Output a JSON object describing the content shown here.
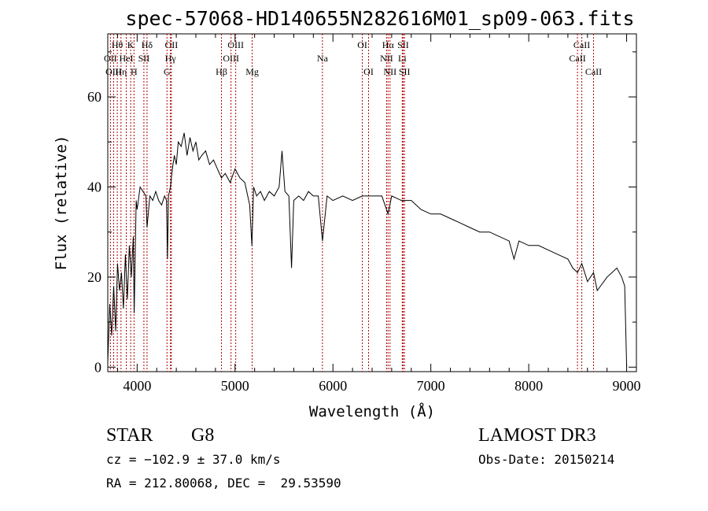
{
  "chart_data": {
    "type": "line",
    "title": "spec-57068-HD140655N282616M01_sp09-063.fits",
    "xlabel": "Wavelength (Å)",
    "ylabel": "Flux (relative)",
    "xlim": [
      3700,
      9100
    ],
    "ylim": [
      -1,
      74
    ],
    "x_ticks": [
      4000,
      5000,
      6000,
      7000,
      8000,
      9000
    ],
    "x_tick_labels": [
      "4000",
      "5000",
      "6000",
      "7000",
      "8000",
      "9000"
    ],
    "y_ticks": [
      0,
      20,
      40,
      60
    ],
    "y_tick_labels": [
      "0",
      "20",
      "40",
      "60"
    ],
    "grid": false,
    "series": [
      {
        "name": "spectrum",
        "x": [
          3700,
          3720,
          3740,
          3760,
          3780,
          3800,
          3820,
          3840,
          3860,
          3880,
          3900,
          3920,
          3940,
          3960,
          3970,
          3990,
          4000,
          4030,
          4060,
          4090,
          4101,
          4130,
          4160,
          4190,
          4220,
          4250,
          4280,
          4300,
          4310,
          4320,
          4340,
          4360,
          4380,
          4400,
          4420,
          4450,
          4480,
          4510,
          4540,
          4570,
          4600,
          4630,
          4660,
          4700,
          4740,
          4780,
          4820,
          4861,
          4900,
          4950,
          5000,
          5050,
          5100,
          5150,
          5172,
          5190,
          5220,
          5260,
          5300,
          5350,
          5400,
          5450,
          5480,
          5510,
          5550,
          5577,
          5600,
          5650,
          5700,
          5750,
          5800,
          5850,
          5893,
          5940,
          6000,
          6100,
          6200,
          6300,
          6400,
          6500,
          6563,
          6600,
          6700,
          6800,
          6900,
          7000,
          7100,
          7200,
          7300,
          7400,
          7500,
          7600,
          7700,
          7800,
          7850,
          7900,
          8000,
          8100,
          8200,
          8300,
          8400,
          8450,
          8498,
          8542,
          8600,
          8662,
          8700,
          8800,
          8850,
          8900,
          8950,
          8980,
          9000
        ],
        "y": [
          1,
          14,
          7,
          18,
          8,
          23,
          17,
          21,
          13,
          25,
          15,
          27,
          20,
          29,
          12,
          37,
          35,
          40,
          39,
          38,
          31,
          38,
          37,
          39,
          37,
          36,
          38,
          37,
          24,
          38,
          40,
          44,
          47,
          45,
          50,
          49,
          52,
          47,
          51,
          48,
          50,
          46,
          47,
          48,
          45,
          46,
          44,
          42,
          43,
          41,
          44,
          42,
          41,
          36,
          27,
          40,
          38,
          39,
          37,
          39,
          38,
          40,
          48,
          39,
          38,
          22,
          37,
          38,
          37,
          39,
          38,
          38,
          28,
          38,
          37,
          38,
          37,
          38,
          38,
          38,
          34,
          38,
          37,
          37,
          35,
          34,
          34,
          33,
          32,
          31,
          30,
          30,
          29,
          28,
          24,
          28,
          27,
          27,
          26,
          25,
          24,
          22,
          21,
          23,
          19,
          21,
          17,
          20,
          21,
          22,
          20,
          18,
          0
        ]
      }
    ],
    "line_markers": [
      {
        "label": "Hθ",
        "wavelength": 3797,
        "row": 1
      },
      {
        "label": "OII",
        "wavelength": 3727,
        "row": 2
      },
      {
        "label": "OIII",
        "wavelength": 3760,
        "row": 3
      },
      {
        "label": "Hη",
        "wavelength": 3835,
        "row": 3
      },
      {
        "label": "K",
        "wavelength": 3934,
        "row": 1
      },
      {
        "label": "HeI",
        "wavelength": 3889,
        "row": 2
      },
      {
        "label": "H",
        "wavelength": 3968,
        "row": 3
      },
      {
        "label": "Hδ",
        "wavelength": 4101,
        "row": 1
      },
      {
        "label": "SII",
        "wavelength": 4069,
        "row": 2
      },
      {
        "label": "OII",
        "wavelength": 4350,
        "row": 1
      },
      {
        "label": "Hγ",
        "wavelength": 4340,
        "row": 2
      },
      {
        "label": "G",
        "wavelength": 4305,
        "row": 3
      },
      {
        "label": "Hβ",
        "wavelength": 4861,
        "row": 3
      },
      {
        "label": "OIII",
        "wavelength": 5007,
        "row": 1
      },
      {
        "label": "OIII",
        "wavelength": 4959,
        "row": 2
      },
      {
        "label": "Mg",
        "wavelength": 5175,
        "row": 3
      },
      {
        "label": "Na",
        "wavelength": 5893,
        "row": 2
      },
      {
        "label": "OI",
        "wavelength": 6300,
        "row": 1
      },
      {
        "label": "OI",
        "wavelength": 6364,
        "row": 3
      },
      {
        "label": "Hα",
        "wavelength": 6563,
        "row": 1
      },
      {
        "label": "NII",
        "wavelength": 6548,
        "row": 2
      },
      {
        "label": "NII",
        "wavelength": 6583,
        "row": 3
      },
      {
        "label": "SII",
        "wavelength": 6717,
        "row": 1
      },
      {
        "label": "Li",
        "wavelength": 6708,
        "row": 2
      },
      {
        "label": "SII",
        "wavelength": 6731,
        "row": 3
      },
      {
        "label": "CaII",
        "wavelength": 8542,
        "row": 1
      },
      {
        "label": "CaII",
        "wavelength": 8498,
        "row": 2
      },
      {
        "label": "CaII",
        "wavelength": 8662,
        "row": 3
      }
    ]
  },
  "info": {
    "object_class": "STAR",
    "subclass": "G8",
    "survey": "LAMOST DR3",
    "cz": "cz = −102.9 ± 37.0 km/s",
    "obs_date": "Obs-Date: 20150214",
    "coords": "RA = 212.80068, DEC =  29.53590"
  }
}
